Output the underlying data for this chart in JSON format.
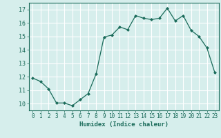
{
  "x": [
    0,
    1,
    2,
    3,
    4,
    5,
    6,
    7,
    8,
    9,
    10,
    11,
    12,
    13,
    14,
    15,
    16,
    17,
    18,
    19,
    20,
    21,
    22,
    23
  ],
  "y": [
    11.9,
    11.65,
    11.1,
    10.05,
    10.05,
    9.85,
    10.3,
    10.75,
    12.2,
    14.95,
    15.1,
    15.7,
    15.5,
    16.55,
    16.35,
    16.25,
    16.35,
    17.1,
    16.15,
    16.55,
    15.45,
    15.0,
    14.15,
    12.3
  ],
  "line_color": "#1a6b5a",
  "marker": "D",
  "marker_size": 2.0,
  "bg_color": "#d6eeec",
  "grid_color": "#ffffff",
  "axis_label_color": "#1a6b5a",
  "tick_color": "#1a6b5a",
  "xlabel": "Humidex (Indice chaleur)",
  "ylim": [
    9.5,
    17.5
  ],
  "xlim": [
    -0.5,
    23.5
  ],
  "yticks": [
    10,
    11,
    12,
    13,
    14,
    15,
    16,
    17
  ],
  "xticks": [
    0,
    1,
    2,
    3,
    4,
    5,
    6,
    7,
    8,
    9,
    10,
    11,
    12,
    13,
    14,
    15,
    16,
    17,
    18,
    19,
    20,
    21,
    22,
    23
  ]
}
